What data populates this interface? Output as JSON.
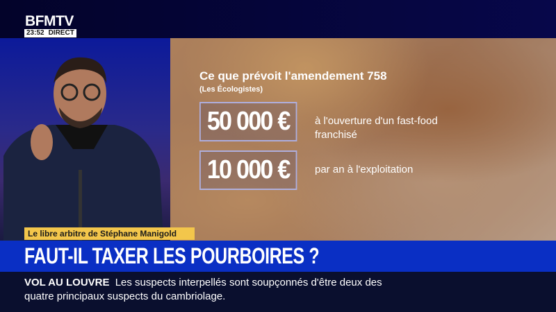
{
  "channel": {
    "logo": "BFMTV",
    "time": "23:52",
    "live": "DIRECT"
  },
  "graphic": {
    "title": "Ce que prévoit l'amendement 758",
    "subtitle": "(Les Écologistes)",
    "items": [
      {
        "amount": "50 000 €",
        "description_line1": "à l'ouverture d'un fast-food",
        "description_line2": "franchisé"
      },
      {
        "amount": "10 000 €",
        "description_line1": "par an à l'exploitation"
      }
    ]
  },
  "show_tag": "Le libre arbitre de Stéphane Manigold",
  "headline": "FAUT-IL TAXER LES POURBOIRES ?",
  "ticker": {
    "label": "VOL AU LOUVRE",
    "text": "Les suspects interpellés sont soupçonnés d'être deux des",
    "text_line2": "quatre principaux suspects du cambriolage."
  },
  "colors": {
    "top_bar": "#05053a",
    "banner": "#0a2fc4",
    "tag": "#f3c64b",
    "ticker": "#0a0f2e"
  }
}
